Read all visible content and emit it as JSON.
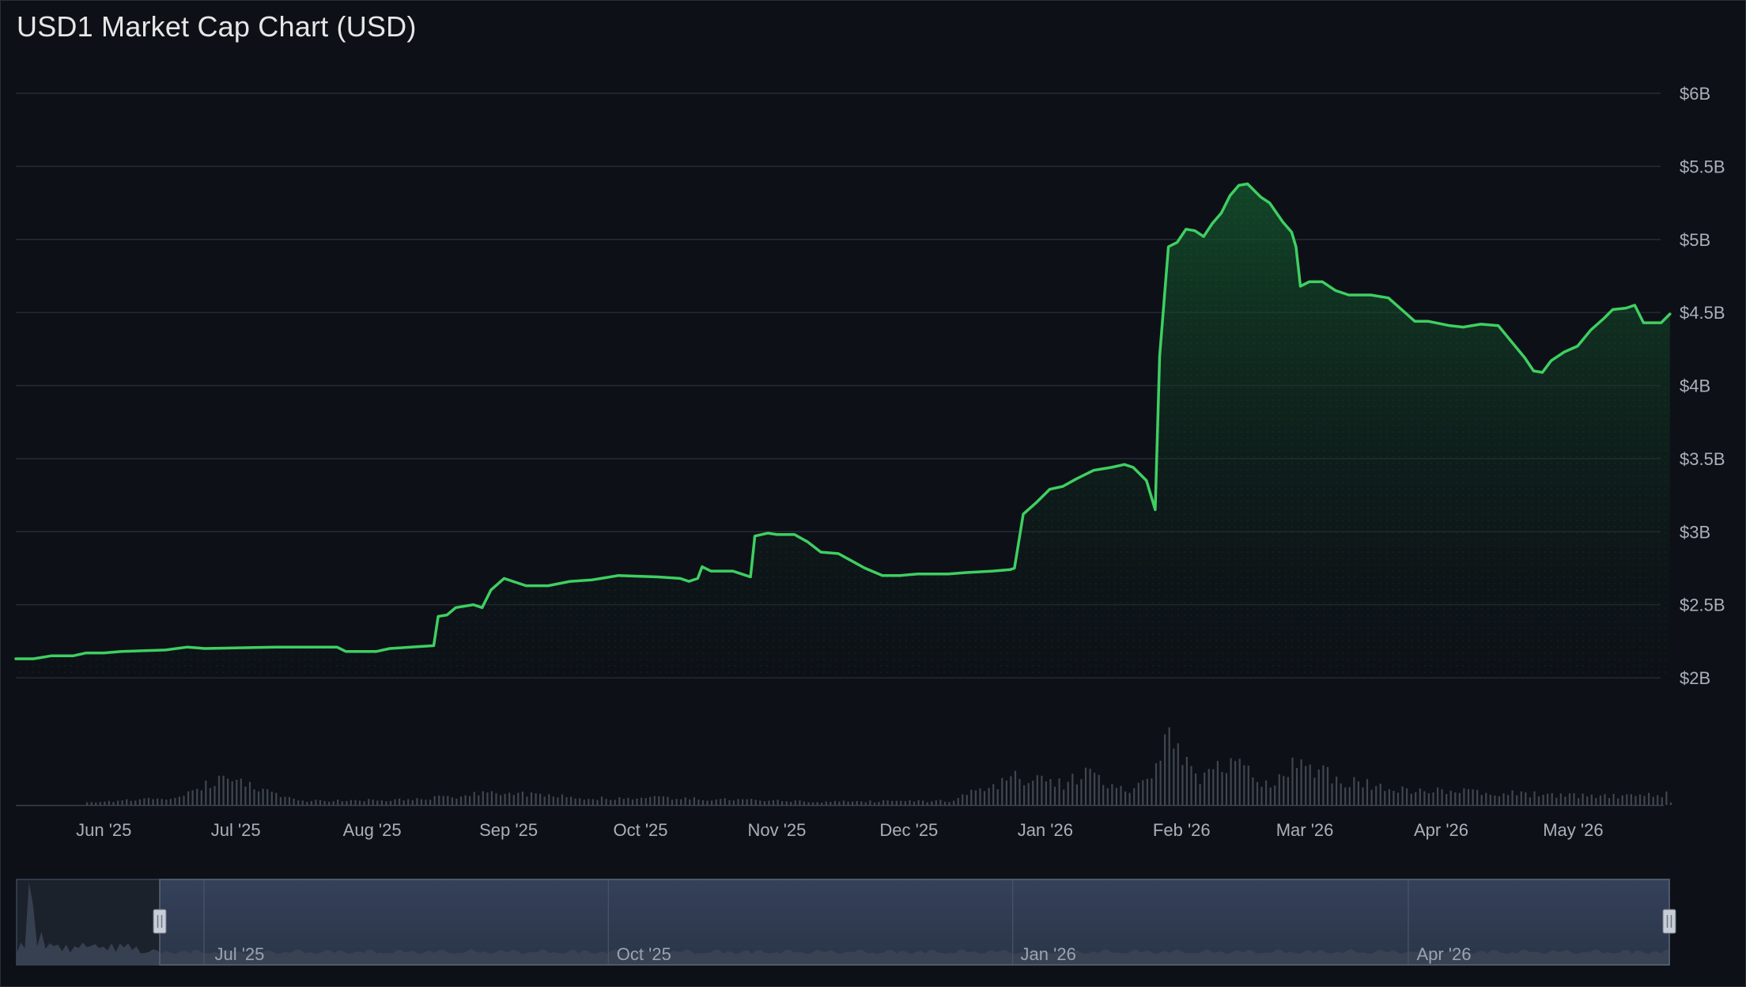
{
  "title": "USD1 Market Cap Chart (USD)",
  "chart_data": {
    "type": "area",
    "title": "USD1 Market Cap Chart (USD)",
    "xlabel": "",
    "ylabel": "",
    "ylim": [
      2.0,
      6.0
    ],
    "y_unit": "billion USD",
    "yticks": [
      {
        "value": 6.0,
        "label": "$6B"
      },
      {
        "value": 5.5,
        "label": "$5.5B"
      },
      {
        "value": 5.0,
        "label": "$5B"
      },
      {
        "value": 4.5,
        "label": "$4.5B"
      },
      {
        "value": 4.0,
        "label": "$4B"
      },
      {
        "value": 3.5,
        "label": "$3.5B"
      },
      {
        "value": 3.0,
        "label": "$3B"
      },
      {
        "value": 2.5,
        "label": "$2.5B"
      },
      {
        "value": 2.0,
        "label": "$2B"
      }
    ],
    "xlim": [
      "2025-05-12",
      "2026-05-18"
    ],
    "xticks": [
      {
        "date": "2025-06-01",
        "label": "Jun '25"
      },
      {
        "date": "2025-07-01",
        "label": "Jul '25"
      },
      {
        "date": "2025-08-01",
        "label": "Aug '25"
      },
      {
        "date": "2025-09-01",
        "label": "Sep '25"
      },
      {
        "date": "2025-10-01",
        "label": "Oct '25"
      },
      {
        "date": "2025-11-01",
        "label": "Nov '25"
      },
      {
        "date": "2025-12-01",
        "label": "Dec '25"
      },
      {
        "date": "2026-01-01",
        "label": "Jan '26"
      },
      {
        "date": "2026-02-01",
        "label": "Feb '26"
      },
      {
        "date": "2026-03-01",
        "label": "Mar '26"
      },
      {
        "date": "2026-04-01",
        "label": "Apr '26"
      },
      {
        "date": "2026-05-01",
        "label": "May '26"
      }
    ],
    "grid": true,
    "legend": "none",
    "colors": {
      "line": "#3fcf62",
      "fill": "#0f3a1f",
      "grid": "#262c33",
      "volume": "#4a5058",
      "axis_text": "#aab0b8",
      "navigator_bg": "#2a3548",
      "navigator_mask": "#1c222b"
    },
    "series": [
      {
        "values": [
          [
            "2025-05-12",
            2.13
          ],
          [
            "2025-05-16",
            2.13
          ],
          [
            "2025-05-20",
            2.15
          ],
          [
            "2025-05-25",
            2.15
          ],
          [
            "2025-05-28",
            2.17
          ],
          [
            "2025-06-01",
            2.17
          ],
          [
            "2025-06-05",
            2.18
          ],
          [
            "2025-06-15",
            2.19
          ],
          [
            "2025-06-20",
            2.21
          ],
          [
            "2025-06-24",
            2.2
          ],
          [
            "2025-07-10",
            2.21
          ],
          [
            "2025-07-24",
            2.21
          ],
          [
            "2025-07-26",
            2.18
          ],
          [
            "2025-08-02",
            2.18
          ],
          [
            "2025-08-05",
            2.2
          ],
          [
            "2025-08-15",
            2.22
          ],
          [
            "2025-08-16",
            2.42
          ],
          [
            "2025-08-18",
            2.43
          ],
          [
            "2025-08-20",
            2.48
          ],
          [
            "2025-08-24",
            2.5
          ],
          [
            "2025-08-26",
            2.48
          ],
          [
            "2025-08-28",
            2.6
          ],
          [
            "2025-08-31",
            2.68
          ],
          [
            "2025-09-02",
            2.66
          ],
          [
            "2025-09-05",
            2.63
          ],
          [
            "2025-09-10",
            2.63
          ],
          [
            "2025-09-15",
            2.66
          ],
          [
            "2025-09-20",
            2.67
          ],
          [
            "2025-09-22",
            2.68
          ],
          [
            "2025-09-26",
            2.7
          ],
          [
            "2025-10-05",
            2.69
          ],
          [
            "2025-10-10",
            2.68
          ],
          [
            "2025-10-12",
            2.66
          ],
          [
            "2025-10-14",
            2.68
          ],
          [
            "2025-10-15",
            2.76
          ],
          [
            "2025-10-17",
            2.73
          ],
          [
            "2025-10-22",
            2.73
          ],
          [
            "2025-10-24",
            2.71
          ],
          [
            "2025-10-26",
            2.69
          ],
          [
            "2025-10-27",
            2.97
          ],
          [
            "2025-10-30",
            2.99
          ],
          [
            "2025-11-01",
            2.98
          ],
          [
            "2025-11-05",
            2.98
          ],
          [
            "2025-11-08",
            2.93
          ],
          [
            "2025-11-11",
            2.86
          ],
          [
            "2025-11-15",
            2.85
          ],
          [
            "2025-11-18",
            2.8
          ],
          [
            "2025-11-21",
            2.75
          ],
          [
            "2025-11-25",
            2.7
          ],
          [
            "2025-11-29",
            2.7
          ],
          [
            "2025-12-03",
            2.71
          ],
          [
            "2025-12-10",
            2.71
          ],
          [
            "2025-12-14",
            2.72
          ],
          [
            "2025-12-20",
            2.73
          ],
          [
            "2025-12-24",
            2.74
          ],
          [
            "2025-12-25",
            2.75
          ],
          [
            "2025-12-27",
            3.12
          ],
          [
            "2025-12-30",
            3.2
          ],
          [
            "2026-01-02",
            3.29
          ],
          [
            "2026-01-05",
            3.31
          ],
          [
            "2026-01-08",
            3.36
          ],
          [
            "2026-01-12",
            3.42
          ],
          [
            "2026-01-16",
            3.44
          ],
          [
            "2026-01-19",
            3.46
          ],
          [
            "2026-01-21",
            3.44
          ],
          [
            "2026-01-24",
            3.35
          ],
          [
            "2026-01-26",
            3.15
          ],
          [
            "2026-01-27",
            4.2
          ],
          [
            "2026-01-29",
            4.95
          ],
          [
            "2026-01-31",
            4.98
          ],
          [
            "2026-02-02",
            5.07
          ],
          [
            "2026-02-04",
            5.06
          ],
          [
            "2026-02-06",
            5.02
          ],
          [
            "2026-02-08",
            5.11
          ],
          [
            "2026-02-10",
            5.18
          ],
          [
            "2026-02-12",
            5.3
          ],
          [
            "2026-02-14",
            5.37
          ],
          [
            "2026-02-16",
            5.38
          ],
          [
            "2026-02-19",
            5.29
          ],
          [
            "2026-02-21",
            5.25
          ],
          [
            "2026-02-24",
            5.12
          ],
          [
            "2026-02-26",
            5.05
          ],
          [
            "2026-02-27",
            4.95
          ],
          [
            "2026-02-28",
            4.68
          ],
          [
            "2026-03-02",
            4.71
          ],
          [
            "2026-03-05",
            4.71
          ],
          [
            "2026-03-08",
            4.65
          ],
          [
            "2026-03-11",
            4.62
          ],
          [
            "2026-03-16",
            4.62
          ],
          [
            "2026-03-20",
            4.6
          ],
          [
            "2026-03-23",
            4.52
          ],
          [
            "2026-03-26",
            4.44
          ],
          [
            "2026-03-29",
            4.44
          ],
          [
            "2026-04-03",
            4.41
          ],
          [
            "2026-04-06",
            4.4
          ],
          [
            "2026-04-10",
            4.42
          ],
          [
            "2026-04-14",
            4.41
          ],
          [
            "2026-04-17",
            4.3
          ],
          [
            "2026-04-20",
            4.19
          ],
          [
            "2026-04-22",
            4.1
          ],
          [
            "2026-04-24",
            4.09
          ],
          [
            "2026-04-26",
            4.17
          ],
          [
            "2026-04-29",
            4.23
          ],
          [
            "2026-05-02",
            4.27
          ],
          [
            "2026-05-05",
            4.38
          ],
          [
            "2026-05-08",
            4.46
          ],
          [
            "2026-05-10",
            4.52
          ],
          [
            "2026-05-13",
            4.53
          ],
          [
            "2026-05-15",
            4.55
          ],
          [
            "2026-05-17",
            4.43
          ],
          [
            "2026-05-21",
            4.43
          ],
          [
            "2026-05-23",
            4.49
          ]
        ]
      }
    ],
    "volume_note_values_relative": [
      [
        "2025-06-01",
        0.05
      ],
      [
        "2025-06-15",
        0.1
      ],
      [
        "2025-06-28",
        0.38
      ],
      [
        "2025-07-15",
        0.06
      ],
      [
        "2025-08-10",
        0.08
      ],
      [
        "2025-08-30",
        0.18
      ],
      [
        "2025-09-20",
        0.09
      ],
      [
        "2025-10-01",
        0.12
      ],
      [
        "2025-10-20",
        0.08
      ],
      [
        "2025-11-10",
        0.05
      ],
      [
        "2025-12-10",
        0.06
      ],
      [
        "2025-12-25",
        0.4
      ],
      [
        "2026-01-05",
        0.3
      ],
      [
        "2026-01-10",
        0.45
      ],
      [
        "2026-01-20",
        0.2
      ],
      [
        "2026-01-26",
        0.5
      ],
      [
        "2026-01-28",
        1.0
      ],
      [
        "2026-02-05",
        0.4
      ],
      [
        "2026-02-12",
        0.6
      ],
      [
        "2026-02-20",
        0.3
      ],
      [
        "2026-02-28",
        0.65
      ],
      [
        "2026-03-02",
        0.55
      ],
      [
        "2026-03-10",
        0.35
      ],
      [
        "2026-03-25",
        0.22
      ],
      [
        "2026-04-10",
        0.18
      ],
      [
        "2026-04-25",
        0.15
      ],
      [
        "2026-05-10",
        0.13
      ],
      [
        "2026-05-22",
        0.16
      ]
    ],
    "navigator": {
      "ticks": [
        {
          "date": "2025-07-01",
          "label": "Jul '25"
        },
        {
          "date": "2025-10-01",
          "label": "Oct '25"
        },
        {
          "date": "2026-01-01",
          "label": "Jan '26"
        },
        {
          "date": "2026-04-01",
          "label": "Apr '26"
        }
      ],
      "range": [
        "2025-05-12",
        "2026-05-23"
      ]
    }
  }
}
